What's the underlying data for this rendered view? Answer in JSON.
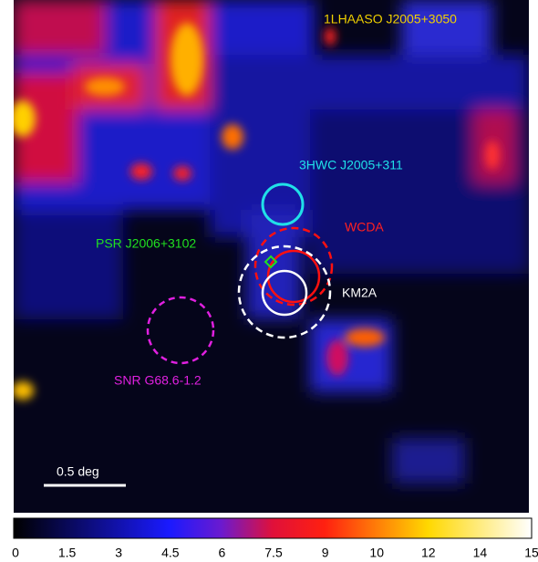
{
  "map": {
    "source_label": "1LHAASO J2005+3050",
    "hawc_label": "3HWC J2005+311",
    "wcda_label": "WCDA",
    "psr_label": "PSR J2006+3102",
    "km2a_label": "KM2A",
    "snr_label": "SNR G68.6-1.2",
    "scale_bar": "0.5 deg"
  },
  "colorbar": {
    "ticks": [
      0,
      1.5,
      3,
      4.5,
      6,
      7.5,
      9,
      10,
      12,
      14,
      15
    ]
  }
}
